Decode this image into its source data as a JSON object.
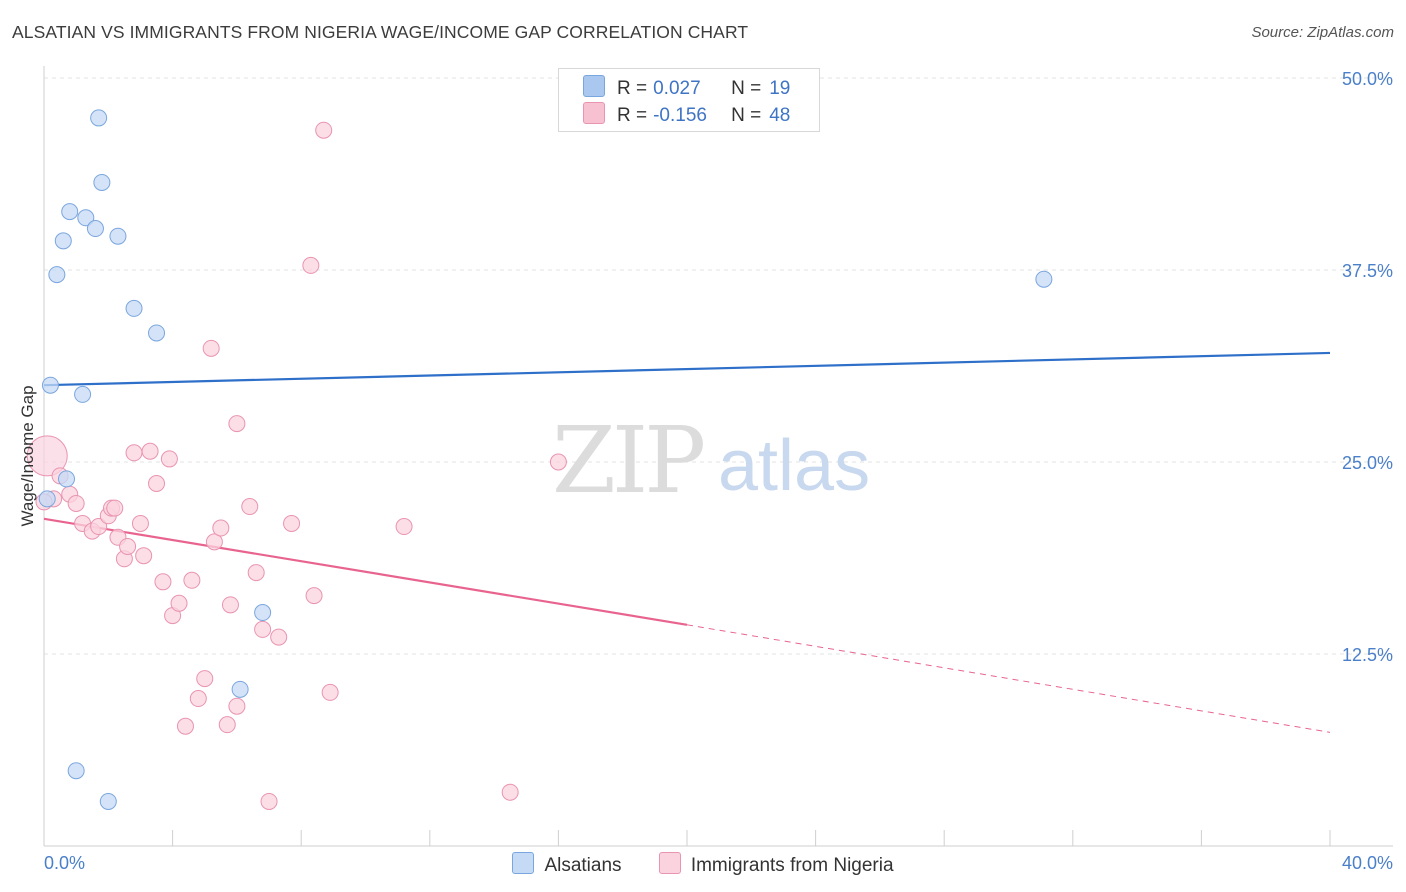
{
  "title": "ALSATIAN VS IMMIGRANTS FROM NIGERIA WAGE/INCOME GAP CORRELATION CHART",
  "source": "Source: ZipAtlas.com",
  "legend_top": [
    {
      "r_label": "R = ",
      "r_value": "0.027",
      "n_label": "N = ",
      "n_value": "19",
      "color": "#a9c7ef",
      "border": "#7aa6de"
    },
    {
      "r_label": "R = ",
      "r_value": "-0.156",
      "n_label": "N = ",
      "n_value": "48",
      "color": "#f7c1d2",
      "border": "#e994b0"
    }
  ],
  "legend_bottom": [
    {
      "label": "Alsatians",
      "color": "#c5daf5",
      "border": "#7aa6de"
    },
    {
      "label": "Immigrants from Nigeria",
      "color": "#fbd3df",
      "border": "#e994b0"
    }
  ],
  "watermark": {
    "zip": "ZIP",
    "atlas": "atlas"
  },
  "chart_data": {
    "type": "scatter",
    "title": "ALSATIAN VS IMMIGRANTS FROM NIGERIA WAGE/INCOME GAP CORRELATION CHART",
    "xlabel": "",
    "ylabel": "Wage/Income Gap",
    "xlim": [
      0,
      40
    ],
    "ylim": [
      0,
      50
    ],
    "x_tick_labels": [
      "0.0%",
      "40.0%"
    ],
    "y_ticks": [
      12.5,
      25.0,
      37.5,
      50.0
    ],
    "y_tick_labels": [
      "12.5%",
      "25.0%",
      "37.5%",
      "50.0%"
    ],
    "series": [
      {
        "name": "Alsatians",
        "color": "#7aa6de",
        "fill": "#c5daf5",
        "trend": {
          "x": [
            0,
            40
          ],
          "y": [
            30.0,
            32.1
          ],
          "color": "#2e6fc9"
        },
        "points": [
          [
            1.7,
            47.4
          ],
          [
            1.8,
            43.2
          ],
          [
            0.8,
            41.3
          ],
          [
            1.3,
            40.9
          ],
          [
            1.6,
            40.2
          ],
          [
            0.6,
            39.4
          ],
          [
            2.3,
            39.7
          ],
          [
            0.4,
            37.2
          ],
          [
            2.8,
            35.0
          ],
          [
            3.5,
            33.4
          ],
          [
            0.2,
            30.0
          ],
          [
            1.2,
            29.4
          ],
          [
            0.7,
            23.9
          ],
          [
            0.1,
            22.6
          ],
          [
            6.8,
            15.2
          ],
          [
            6.1,
            10.2
          ],
          [
            1.0,
            4.9
          ],
          [
            2.0,
            2.9
          ],
          [
            31.1,
            36.9
          ]
        ]
      },
      {
        "name": "Immigrants from Nigeria",
        "color": "#e994b0",
        "fill": "#fbd3df",
        "trend": {
          "x": [
            0,
            20
          ],
          "y": [
            21.3,
            14.4
          ],
          "dashed_to": {
            "x": 40,
            "y": 7.4
          },
          "color": "#e8648f"
        },
        "points": [
          [
            0.1,
            25.4
          ],
          [
            0.5,
            24.1
          ],
          [
            0.3,
            22.6
          ],
          [
            0.8,
            22.9
          ],
          [
            1.0,
            22.3
          ],
          [
            1.2,
            21.0
          ],
          [
            1.5,
            20.5
          ],
          [
            1.7,
            20.8
          ],
          [
            2.0,
            21.5
          ],
          [
            2.1,
            22.0
          ],
          [
            2.2,
            22.0
          ],
          [
            2.3,
            20.1
          ],
          [
            2.5,
            18.7
          ],
          [
            2.6,
            19.5
          ],
          [
            2.8,
            25.6
          ],
          [
            3.0,
            21.0
          ],
          [
            3.1,
            18.9
          ],
          [
            3.3,
            25.7
          ],
          [
            3.5,
            23.6
          ],
          [
            3.7,
            17.2
          ],
          [
            3.9,
            25.2
          ],
          [
            4.0,
            15.0
          ],
          [
            4.2,
            15.8
          ],
          [
            4.4,
            7.8
          ],
          [
            4.6,
            17.3
          ],
          [
            4.8,
            9.6
          ],
          [
            5.0,
            10.9
          ],
          [
            5.2,
            32.4
          ],
          [
            5.3,
            19.8
          ],
          [
            5.5,
            20.7
          ],
          [
            5.7,
            7.9
          ],
          [
            5.8,
            15.7
          ],
          [
            6.0,
            9.1
          ],
          [
            6.0,
            27.5
          ],
          [
            6.4,
            22.1
          ],
          [
            6.6,
            17.8
          ],
          [
            6.8,
            14.1
          ],
          [
            7.0,
            2.9
          ],
          [
            7.3,
            13.6
          ],
          [
            7.7,
            21.0
          ],
          [
            8.3,
            37.8
          ],
          [
            8.4,
            16.3
          ],
          [
            8.7,
            46.6
          ],
          [
            8.9,
            10.0
          ],
          [
            11.2,
            20.8
          ],
          [
            14.5,
            3.5
          ],
          [
            16.0,
            25.0
          ],
          [
            0.0,
            22.4
          ]
        ]
      }
    ]
  }
}
